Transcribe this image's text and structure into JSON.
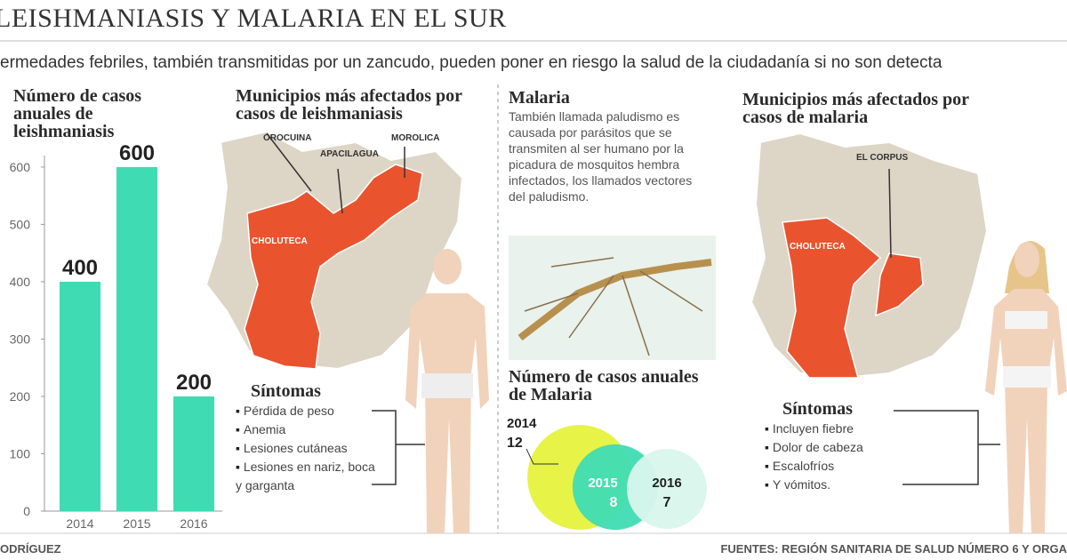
{
  "header": {
    "title": "LEISHMANIASIS Y MALARIA EN EL SUR",
    "subtitle": "ermedades febriles, también transmitidas por un zancudo, pueden poner en riesgo la salud de la ciudadanía si no son detecta"
  },
  "leishmaniasis": {
    "map_title": "Municipios más afectados por casos de leishmaniasis",
    "map_labels": [
      "OROCUINA",
      "APACILAGUA",
      "MOROLICA",
      "CHOLUTECA"
    ],
    "symptoms_title": "Síntomas",
    "symptoms": [
      "Pérdida de peso",
      "Anemia",
      "Lesiones cutáneas",
      "Lesiones en nariz, boca y garganta"
    ]
  },
  "malaria": {
    "title": "Malaria",
    "description": "También llamada paludismo es causada por parásitos que se transmiten al ser humano por la picadura de mosquitos hembra infectados, los llamados vectores del paludismo.",
    "map_title": "Municipios más afectados por casos de malaria",
    "map_labels": [
      "EL CORPUS",
      "CHOLUTECA"
    ],
    "symptoms_title": "Síntomas",
    "symptoms": [
      "Incluyen fiebre",
      "Dolor de cabeza",
      "Escalofríos",
      "Y vómitos."
    ]
  },
  "footer": {
    "credit": "ODRÍGUEZ",
    "sources": "FUENTES: REGIÓN SANITARIA DE SALUD NÚMERO 6 Y ORGA"
  },
  "chart_data": [
    {
      "type": "bar",
      "title": "Número de casos anuales de leishmaniasis",
      "categories": [
        "2014",
        "2015",
        "2016"
      ],
      "values": [
        400,
        600,
        200
      ],
      "color": "#3fdcb4",
      "ylim": [
        0,
        620
      ],
      "yticks": [
        0,
        100,
        200,
        300,
        400,
        500,
        600
      ]
    },
    {
      "type": "bubble",
      "title": "Número de casos anuales de Malaria",
      "categories": [
        "2014",
        "2015",
        "2016"
      ],
      "values": [
        12,
        8,
        7
      ],
      "colors": [
        "#e6f23c",
        "#3fdcb4",
        "#d9f6ec"
      ]
    }
  ]
}
